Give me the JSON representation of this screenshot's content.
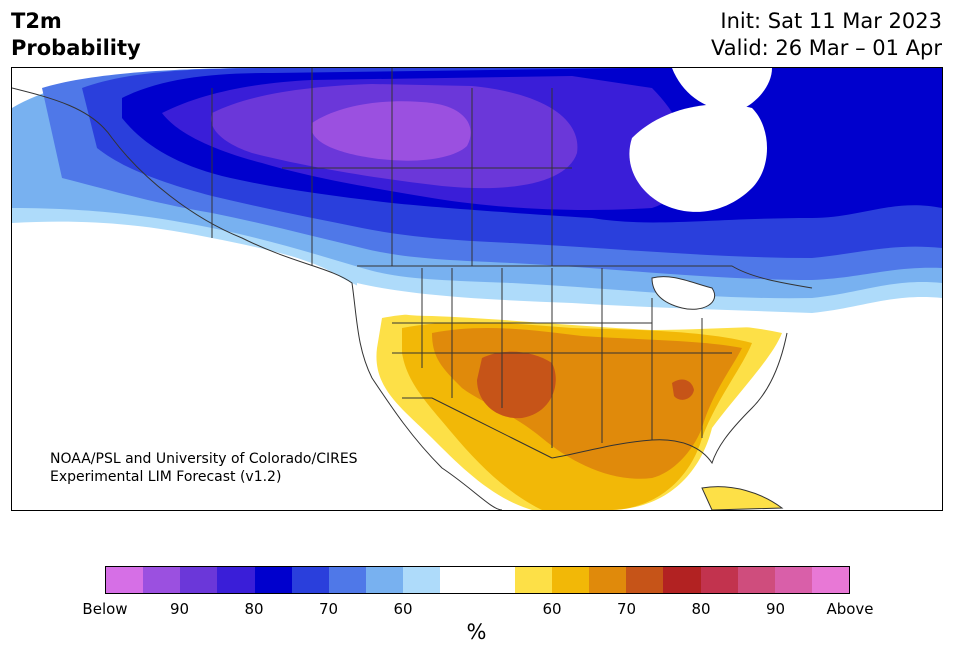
{
  "header": {
    "variable": "T2m",
    "subtitle": "Probability",
    "init": "Init: Sat 11 Mar 2023",
    "valid": "Valid: 26 Mar – 01 Apr"
  },
  "credit": {
    "line1": "NOAA/PSL and University of Colorado/CIRES",
    "line2": "Experimental LIM Forecast (v1.2)"
  },
  "colorbar": {
    "colors": [
      "#d66fe6",
      "#9b50e0",
      "#6b37d9",
      "#3a1ed8",
      "#0000cd",
      "#2a3fdc",
      "#4f78e8",
      "#78b1f0",
      "#aedbfa",
      "#ffffff",
      "#ffffff",
      "#fde047",
      "#f2b807",
      "#e08a0b",
      "#c65418",
      "#b22222",
      "#c2334e",
      "#cf4d7d",
      "#d95fa9",
      "#e878d6"
    ],
    "labels": [
      "Below",
      "90",
      "80",
      "70",
      "60",
      "60",
      "70",
      "80",
      "90",
      "Above"
    ],
    "units": "%"
  },
  "legend_categories": {
    "below": "Below",
    "above": "Above"
  }
}
